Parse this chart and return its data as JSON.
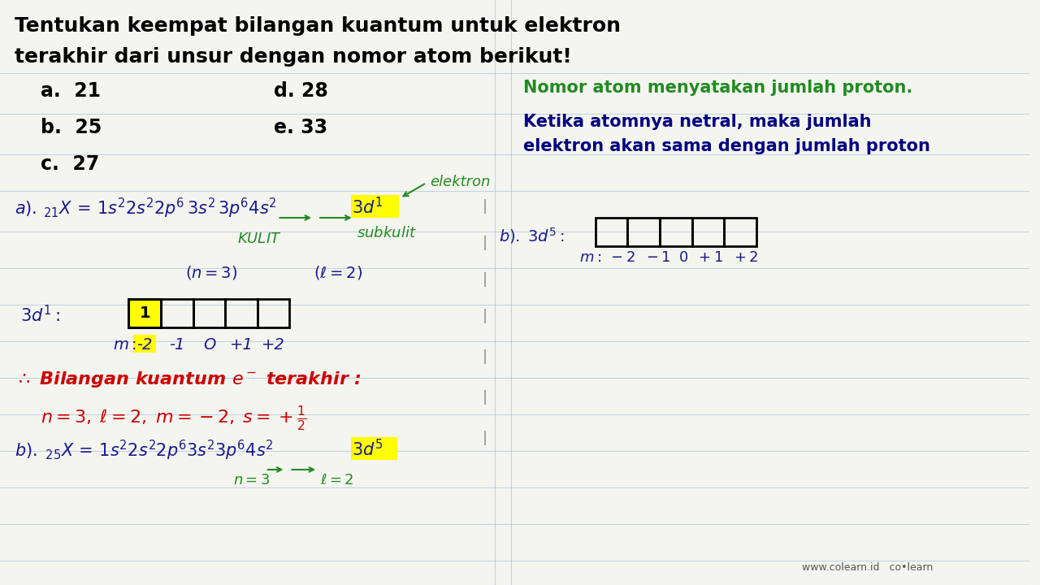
{
  "bg_color": "#f5f5f0",
  "title_line1": "Tentukan keempat bilangan kuantum untuk elektron",
  "title_line2": "terakhir dari unsur dengan nomor atom berikut!",
  "items_left": [
    "a.  21",
    "b.  25",
    "c.  27"
  ],
  "items_right": [
    "d. 28",
    "e. 33"
  ],
  "note_line1": "Nomor atom menyatakan jumlah proton.",
  "note_line2": "Ketika atomnya netral, maka jumlah",
  "note_line3": "elektron akan sama dengan jumlah proton",
  "note_color": "#228B22",
  "note2_color": "#000080",
  "handwriting_color_dark": "#1a1a8c",
  "handwriting_color_red": "#cc0000",
  "handwriting_color_green": "#228B22",
  "highlight_yellow": "#ffff00",
  "watermark": "www.colearn.id   co•learn"
}
